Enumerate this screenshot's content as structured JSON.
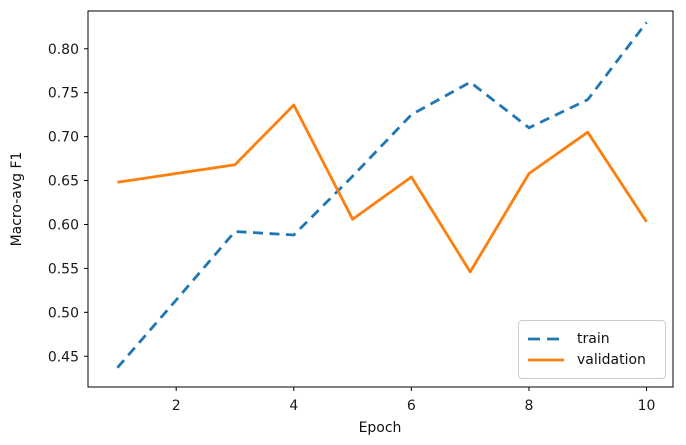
{
  "chart_data": {
    "type": "line",
    "title": "",
    "xlabel": "Epoch",
    "ylabel": "Macro-avg F1",
    "x": [
      1,
      2,
      3,
      4,
      5,
      6,
      7,
      8,
      9,
      10
    ],
    "series": [
      {
        "name": "train",
        "color": "#1f77b4",
        "style": "dashed",
        "values": [
          0.437,
          0.514,
          0.592,
          0.588,
          0.655,
          0.725,
          0.762,
          0.71,
          0.742,
          0.83
        ]
      },
      {
        "name": "validation",
        "color": "#ff7f0e",
        "style": "solid",
        "values": [
          0.648,
          0.658,
          0.668,
          0.736,
          0.606,
          0.654,
          0.546,
          0.658,
          0.705,
          0.603
        ]
      }
    ],
    "xlim": [
      0.5,
      10.45
    ],
    "ylim": [
      0.415,
      0.843
    ],
    "xticks": [
      2,
      4,
      6,
      8,
      10
    ],
    "xtick_labels": [
      "2",
      "4",
      "6",
      "8",
      "10"
    ],
    "yticks": [
      0.45,
      0.5,
      0.55,
      0.6,
      0.65,
      0.7,
      0.75,
      0.8
    ],
    "ytick_labels": [
      "0.45",
      "0.50",
      "0.55",
      "0.60",
      "0.65",
      "0.70",
      "0.75",
      "0.80"
    ],
    "grid": false,
    "legend_position": "lower right",
    "axis_color": "#000000",
    "tick_label_color": "#191919"
  }
}
